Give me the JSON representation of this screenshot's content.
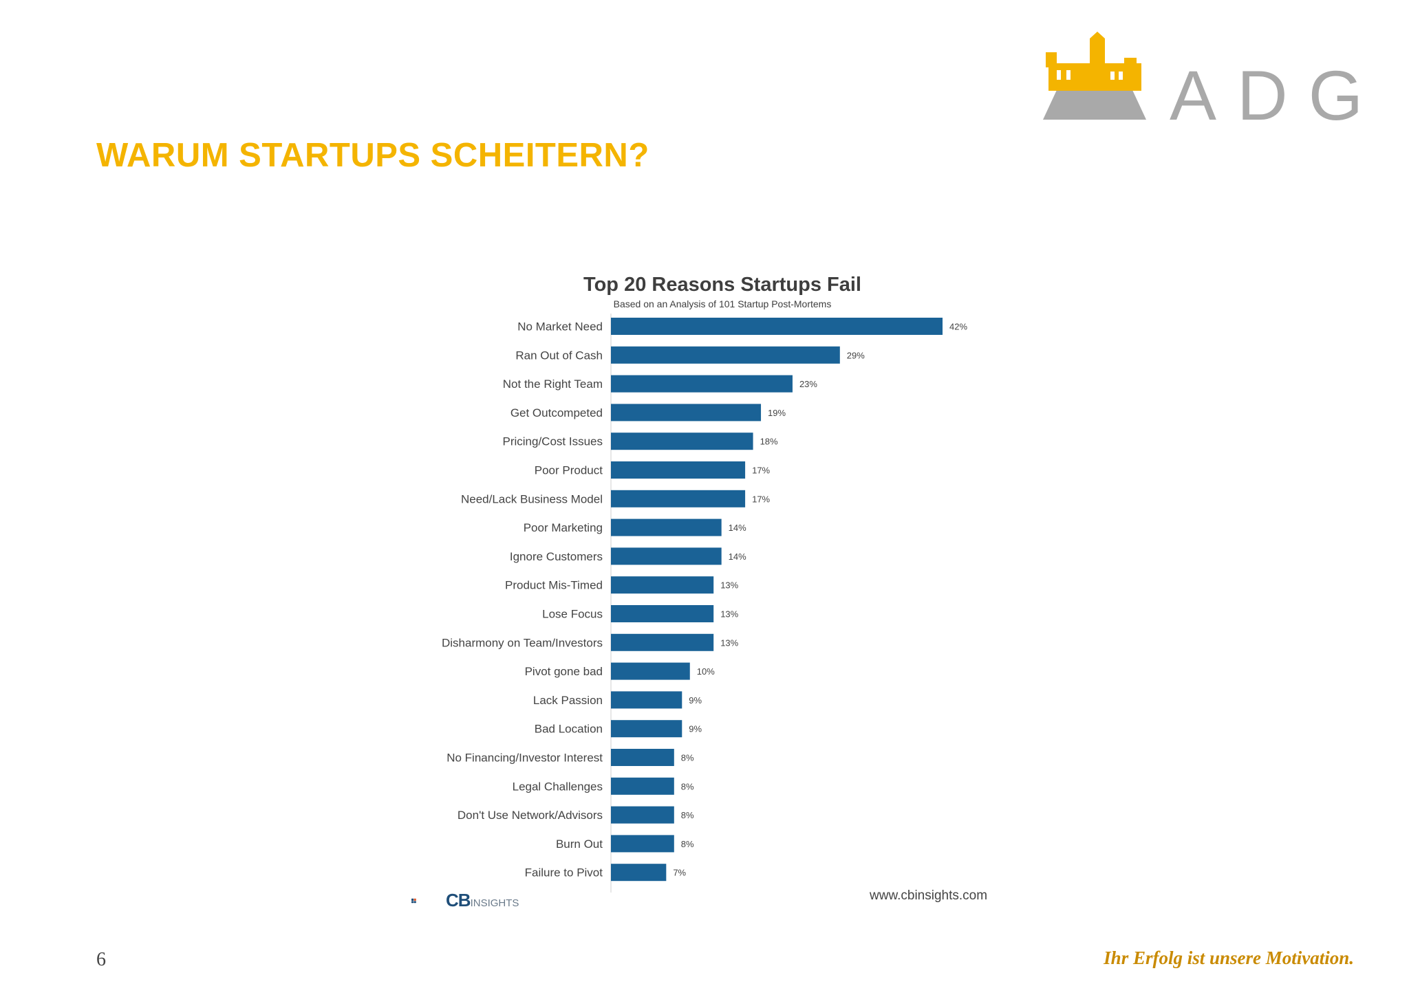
{
  "slide": {
    "title": "WARUM STARTUPS SCHEITERN?",
    "page_number": "6",
    "tagline": "Ihr Erfolg ist unsere Motivation.",
    "logo_text": "ADG"
  },
  "colors": {
    "title": "#f4b400",
    "bar": "#1a6296",
    "logo_gold": "#f4b400",
    "logo_gray": "#a9a9a9"
  },
  "chart_data": {
    "type": "bar",
    "orientation": "horizontal",
    "title": "Top 20 Reasons Startups Fail",
    "subtitle": "Based on an Analysis of 101 Startup Post-Mortems",
    "categories": [
      "No Market Need",
      "Ran Out of Cash",
      "Not the Right Team",
      "Get Outcompeted",
      "Pricing/Cost Issues",
      "Poor Product",
      "Need/Lack Business Model",
      "Poor Marketing",
      "Ignore Customers",
      "Product Mis-Timed",
      "Lose Focus",
      "Disharmony on Team/Investors",
      "Pivot gone bad",
      "Lack Passion",
      "Bad Location",
      "No Financing/Investor Interest",
      "Legal Challenges",
      "Don't Use Network/Advisors",
      "Burn Out",
      "Failure to Pivot"
    ],
    "values": [
      42,
      29,
      23,
      19,
      18,
      17,
      17,
      14,
      14,
      13,
      13,
      13,
      10,
      9,
      9,
      8,
      8,
      8,
      8,
      7
    ],
    "value_labels": [
      "42%",
      "29%",
      "23%",
      "19%",
      "18%",
      "17%",
      "17%",
      "14%",
      "14%",
      "13%",
      "13%",
      "13%",
      "10%",
      "9%",
      "9%",
      "8%",
      "8%",
      "8%",
      "8%",
      "7%"
    ],
    "xlim": [
      0,
      42
    ],
    "source": "www.cbinsights.com",
    "brand": {
      "main": "CB",
      "sub": "INSIGHTS"
    }
  }
}
